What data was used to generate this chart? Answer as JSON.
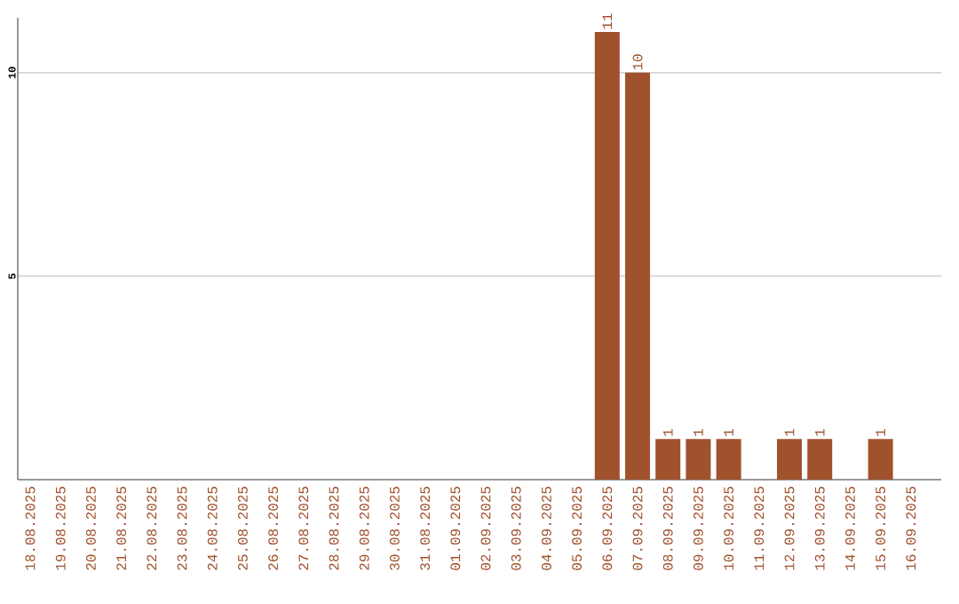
{
  "chart_data": {
    "type": "bar",
    "categories": [
      "18.08.2025",
      "19.08.2025",
      "20.08.2025",
      "21.08.2025",
      "22.08.2025",
      "23.08.2025",
      "24.08.2025",
      "25.08.2025",
      "26.08.2025",
      "27.08.2025",
      "28.08.2025",
      "29.08.2025",
      "30.08.2025",
      "31.08.2025",
      "01.09.2025",
      "02.09.2025",
      "03.09.2025",
      "04.09.2025",
      "05.09.2025",
      "06.09.2025",
      "07.09.2025",
      "08.09.2025",
      "09.09.2025",
      "10.09.2025",
      "11.09.2025",
      "12.09.2025",
      "13.09.2025",
      "14.09.2025",
      "15.09.2025",
      "16.09.2025"
    ],
    "values": [
      0,
      0,
      0,
      0,
      0,
      0,
      0,
      0,
      0,
      0,
      0,
      0,
      0,
      0,
      0,
      0,
      0,
      0,
      0,
      11,
      10,
      1,
      1,
      1,
      0,
      1,
      1,
      0,
      1,
      0
    ],
    "value_labels": [
      null,
      null,
      null,
      null,
      null,
      null,
      null,
      null,
      null,
      null,
      null,
      null,
      null,
      null,
      null,
      null,
      null,
      null,
      null,
      "11",
      "10",
      "1",
      "1",
      "1",
      null,
      "1",
      "1",
      null,
      "1",
      null
    ],
    "color": "#a0522d",
    "ylim": [
      0,
      11.35
    ],
    "yticks": [
      5,
      10
    ],
    "grid": "y"
  }
}
